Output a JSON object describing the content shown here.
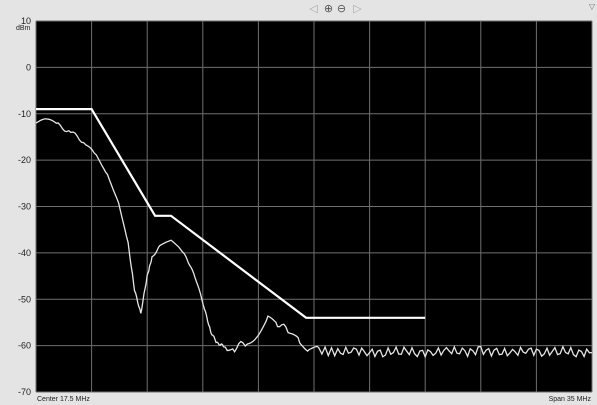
{
  "toolbar": {
    "scroll_left_icon": "◁",
    "zoom_in_icon": "⊕",
    "zoom_out_icon": "⊖",
    "scroll_right_icon": "▷",
    "corner_icon": "▽"
  },
  "colors": {
    "plot_bg": "#000000",
    "grid": "#6f6f6f",
    "trace": "#e6e6e6",
    "limit": "#ffffff",
    "frame": "#e4e4e4"
  },
  "chart_data": {
    "type": "line",
    "ylabel": "dBm",
    "ylim": [
      -70,
      10
    ],
    "yticks": [
      10,
      0,
      -10,
      -20,
      -30,
      -40,
      -50,
      -60,
      -70
    ],
    "xlim": [
      0,
      35
    ],
    "center_label": "Center 17.5 MHz",
    "span_label": "Span 35 MHz",
    "grid": true,
    "series": [
      {
        "role": "limit mask",
        "x": [
          0,
          3.5,
          7.5,
          8.5,
          17.0,
          24.5
        ],
        "values": [
          -9,
          -9,
          -32,
          -32,
          -54,
          -54
        ]
      },
      {
        "role": "measured trace",
        "x": [
          0,
          0.7,
          1.4,
          2.2,
          3.0,
          3.8,
          4.5,
          5.2,
          5.8,
          6.2,
          6.6,
          7.0,
          7.3,
          7.8,
          8.5,
          9.1,
          9.6,
          10.1,
          10.6,
          11.0,
          11.4,
          11.8,
          12.5,
          13.3,
          14.0,
          14.6,
          15.2,
          16.0,
          16.6,
          17.2,
          17.8,
          19.0,
          20.0,
          21.0,
          22.0,
          23.0,
          24.0,
          25.0,
          26.0,
          27.0,
          28.0,
          29.0,
          30.0,
          31.0,
          32.0,
          33.0,
          34.0,
          35.0
        ],
        "values": [
          -12,
          -11.5,
          -12.5,
          -14,
          -16,
          -19,
          -23,
          -29,
          -38,
          -48,
          -53,
          -45,
          -41,
          -38.5,
          -37.5,
          -39,
          -42,
          -46,
          -52,
          -57,
          -59.5,
          -60,
          -60.5,
          -59.5,
          -57,
          -54.5,
          -55,
          -57.5,
          -59.5,
          -60.5,
          -61,
          -61.5,
          -61,
          -61.5,
          -61.5,
          -61,
          -61.5,
          -61.5,
          -61,
          -61.5,
          -61,
          -61.5,
          -61.5,
          -61,
          -61.5,
          -61,
          -61.5,
          -61.5
        ]
      }
    ]
  }
}
